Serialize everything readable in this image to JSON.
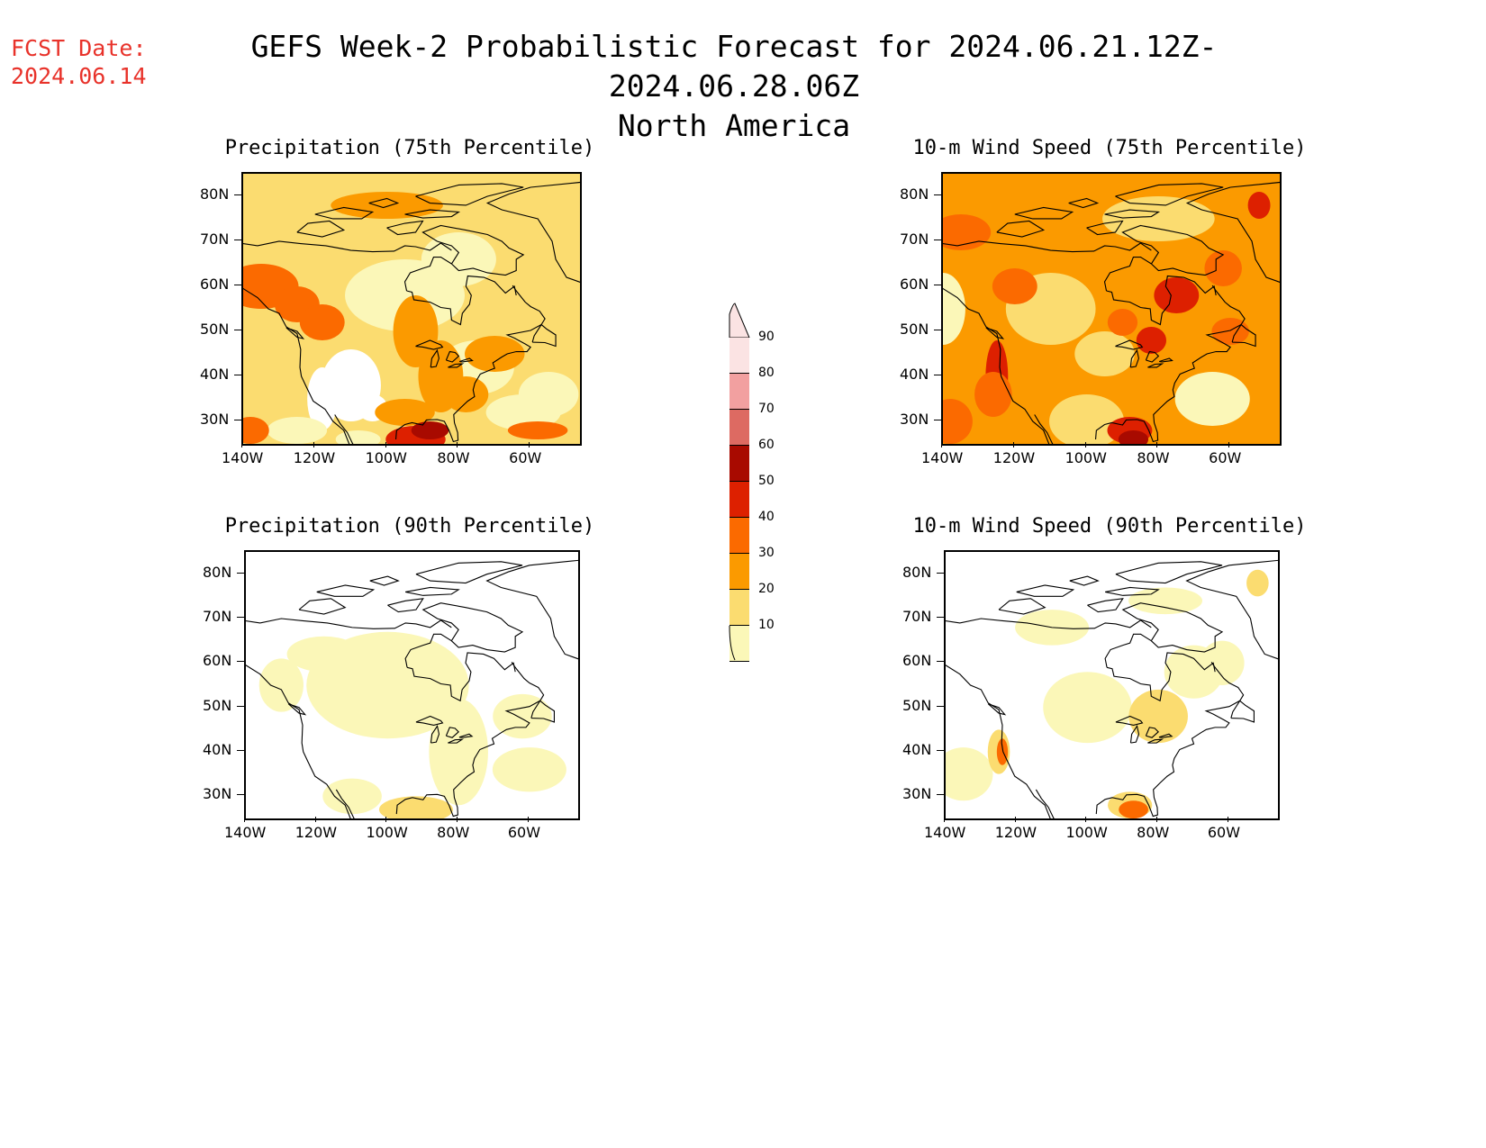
{
  "header": {
    "fcst_label": "FCST Date:",
    "fcst_date": "2024.06.14",
    "title": "GEFS Week-2 Probabilistic Forecast for 2024.06.21.12Z-2024.06.28.06Z",
    "region": "North America"
  },
  "panels": [
    {
      "title": "Precipitation (75th Percentile)",
      "variable": "precip75"
    },
    {
      "title": "10-m Wind Speed (75th Percentile)",
      "variable": "wind75"
    },
    {
      "title": "Precipitation (90th Percentile)",
      "variable": "precip90"
    },
    {
      "title": "10-m Wind Speed (90th Percentile)",
      "variable": "wind90"
    }
  ],
  "lat_labels": [
    "80N",
    "70N",
    "60N",
    "50N",
    "40N",
    "30N"
  ],
  "lon_labels": [
    "140W",
    "120W",
    "100W",
    "80W",
    "60W"
  ],
  "colorbar": {
    "levels": [
      "90",
      "80",
      "70",
      "60",
      "50",
      "40",
      "30",
      "20",
      "10"
    ],
    "colors": [
      "#fbe3e3",
      "#f2a0a0",
      "#dd6a62",
      "#a80a00",
      "#dd2000",
      "#fb6a00",
      "#fb9a00",
      "#fbdc70",
      "#fbf7b8"
    ]
  }
}
